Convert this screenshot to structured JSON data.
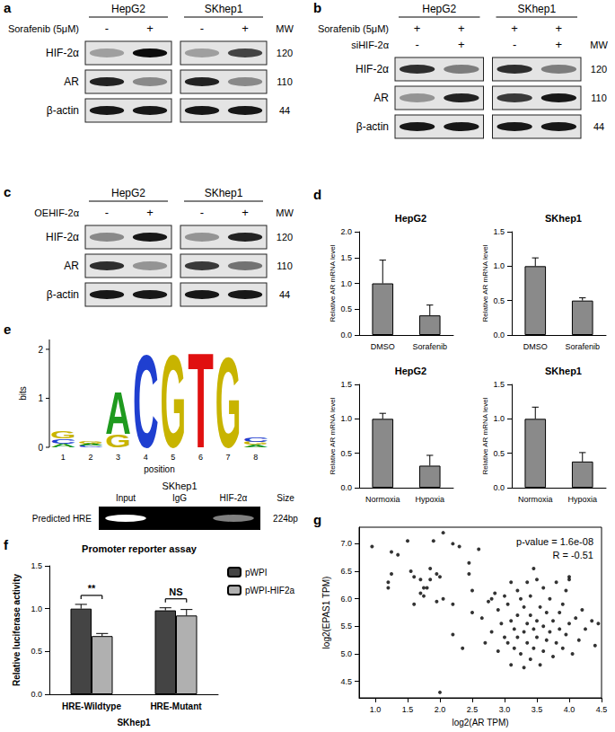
{
  "panel_labels": [
    "a",
    "b",
    "c",
    "d",
    "e",
    "f",
    "g"
  ],
  "panels": {
    "a": {
      "columns": [
        {
          "header": "HepG2"
        },
        {
          "header": "SKhep1"
        }
      ],
      "mw_header": "MW",
      "treatments": [
        {
          "label": "Sorafenib (5μM)",
          "signs": [
            [
              "-",
              "+"
            ],
            [
              "-",
              "+"
            ]
          ]
        }
      ],
      "rows": [
        {
          "label": "HIF-2α",
          "mw": 120,
          "intensity": [
            [
              0.3,
              0.95
            ],
            [
              0.3,
              0.7
            ]
          ]
        },
        {
          "label": "AR",
          "mw": 110,
          "intensity": [
            [
              0.85,
              0.4
            ],
            [
              0.85,
              0.4
            ]
          ]
        },
        {
          "label": "β-actin",
          "mw": 44,
          "intensity": [
            [
              0.9,
              0.9
            ],
            [
              0.9,
              0.9
            ]
          ]
        }
      ]
    },
    "b": {
      "columns": [
        {
          "header": "HepG2"
        },
        {
          "header": "SKhep1"
        }
      ],
      "mw_header": "MW",
      "treatments": [
        {
          "label": "Sorafenib (5μM)",
          "signs": [
            [
              "+",
              "+"
            ],
            [
              "+",
              "+"
            ]
          ]
        },
        {
          "label": "siHIF-2α",
          "signs": [
            [
              "-",
              "+"
            ],
            [
              "-",
              "+"
            ]
          ]
        }
      ],
      "rows": [
        {
          "label": "HIF-2α",
          "mw": 120,
          "intensity": [
            [
              0.8,
              0.45
            ],
            [
              0.8,
              0.45
            ]
          ]
        },
        {
          "label": "AR",
          "mw": 110,
          "intensity": [
            [
              0.35,
              0.85
            ],
            [
              0.75,
              0.9
            ]
          ]
        },
        {
          "label": "β-actin",
          "mw": 44,
          "intensity": [
            [
              0.9,
              0.9
            ],
            [
              0.9,
              0.9
            ]
          ]
        }
      ]
    },
    "c": {
      "columns": [
        {
          "header": "HepG2"
        },
        {
          "header": "SKhep1"
        }
      ],
      "mw_header": "MW",
      "treatments": [
        {
          "label": "OEHIF-2α",
          "signs": [
            [
              "-",
              "+"
            ],
            [
              "-",
              "+"
            ]
          ]
        }
      ],
      "rows": [
        {
          "label": "HIF-2α",
          "mw": 120,
          "intensity": [
            [
              0.4,
              0.9
            ],
            [
              0.35,
              0.85
            ]
          ]
        },
        {
          "label": "AR",
          "mw": 110,
          "intensity": [
            [
              0.8,
              0.35
            ],
            [
              0.75,
              0.5
            ]
          ]
        },
        {
          "label": "β-actin",
          "mw": 44,
          "intensity": [
            [
              0.9,
              0.9
            ],
            [
              0.9,
              0.9
            ]
          ]
        }
      ]
    },
    "e": {
      "logo": {
        "y_label": "bits",
        "x_label": "position",
        "ylim": [
          0,
          2.2
        ],
        "yticks": [
          0,
          1,
          2
        ],
        "positions": [
          1,
          2,
          3,
          4,
          5,
          6,
          7,
          8
        ],
        "stacks": [
          [
            {
              "letter": "A",
              "bits": 0.08,
              "color": "#1f9a1f"
            },
            {
              "letter": "C",
              "bits": 0.1,
              "color": "#1f3fd0"
            },
            {
              "letter": "G",
              "bits": 0.15,
              "color": "#c8b400"
            }
          ],
          [
            {
              "letter": "C",
              "bits": 0.04,
              "color": "#1f3fd0"
            },
            {
              "letter": "A",
              "bits": 0.04,
              "color": "#1f9a1f"
            },
            {
              "letter": "G",
              "bits": 0.04,
              "color": "#c8b400"
            }
          ],
          [
            {
              "letter": "G",
              "bits": 0.28,
              "color": "#c8b400"
            },
            {
              "letter": "A",
              "bits": 0.9,
              "color": "#1f9a1f"
            }
          ],
          [
            {
              "letter": "C",
              "bits": 1.95,
              "color": "#1f3fd0"
            }
          ],
          [
            {
              "letter": "G",
              "bits": 1.95,
              "color": "#c8b400"
            }
          ],
          [
            {
              "letter": "T",
              "bits": 2.0,
              "color": "#e01010"
            }
          ],
          [
            {
              "letter": "G",
              "bits": 1.9,
              "color": "#c8b400"
            }
          ],
          [
            {
              "letter": "A",
              "bits": 0.05,
              "color": "#1f9a1f"
            },
            {
              "letter": "G",
              "bits": 0.06,
              "color": "#c8b400"
            },
            {
              "letter": "C",
              "bits": 0.1,
              "color": "#1f3fd0"
            }
          ]
        ]
      },
      "chip": {
        "header": "SKhep1",
        "lanes": [
          "Input",
          "IgG",
          "HIF-2α"
        ],
        "size_header": "Size",
        "row_label": "Predicted HRE",
        "size": "224bp",
        "intensity": [
          1.0,
          0.0,
          0.5
        ]
      }
    }
  },
  "chart_data": [
    {
      "type": "bar",
      "title": "HepG2",
      "y_label": "Relative AR mRNA level",
      "categories": [
        "DMSO",
        "Sorafenib"
      ],
      "values": [
        1.0,
        0.38
      ],
      "errors": [
        0.45,
        0.2
      ],
      "color": "#8a8a8a",
      "ylim": [
        0,
        2
      ],
      "yticks": [
        {
          "value": 0,
          "label": "0.0"
        },
        0.5,
        {
          "value": 1,
          "label": "1.0"
        },
        1.5,
        {
          "value": 2,
          "label": "2.0"
        }
      ],
      "grid": false
    },
    {
      "type": "bar",
      "title": "SKhep1",
      "y_label": "Relative AR mRNA level",
      "categories": [
        "DMSO",
        "Sorafenib"
      ],
      "values": [
        1.0,
        0.5
      ],
      "errors": [
        0.12,
        0.04
      ],
      "color": "#8a8a8a",
      "ylim": [
        0,
        1.5
      ],
      "yticks": [
        {
          "value": 0,
          "label": "0.0"
        },
        0.5,
        {
          "value": 1,
          "label": "1.0"
        },
        1.5
      ],
      "grid": false
    },
    {
      "type": "bar",
      "title": "HepG2",
      "y_label": "Relative AR mRNA level",
      "categories": [
        "Normoxia",
        "Hypoxia"
      ],
      "values": [
        1.0,
        0.32
      ],
      "errors": [
        0.08,
        0.15
      ],
      "color": "#8a8a8a",
      "ylim": [
        0,
        1.5
      ],
      "yticks": [
        {
          "value": 0,
          "label": "0.0"
        },
        0.5,
        {
          "value": 1,
          "label": "1.0"
        },
        1.5
      ],
      "grid": false
    },
    {
      "type": "bar",
      "title": "SKhep1",
      "y_label": "Relative AR mRNA level",
      "categories": [
        "Normoxia",
        "Hypoxia"
      ],
      "values": [
        1.0,
        0.38
      ],
      "errors": [
        0.17,
        0.13
      ],
      "color": "#8a8a8a",
      "ylim": [
        0,
        1.5
      ],
      "yticks": [
        {
          "value": 0,
          "label": "0.0"
        },
        0.5,
        {
          "value": 1,
          "label": "1.0"
        },
        1.5
      ],
      "grid": false
    },
    {
      "type": "bar",
      "title": "Promoter reporter assay",
      "y_label": "Relative luciferase activity",
      "x_label": "SKhep1",
      "categories": [
        "HRE-Wildtype",
        "HRE-Mutant"
      ],
      "series": [
        {
          "name": "pWPI",
          "color": "#444444",
          "values": [
            1.0,
            0.98
          ],
          "errors": [
            0.05,
            0.03
          ]
        },
        {
          "name": "pWPI-HIF2a",
          "color": "#b0b0b0",
          "values": [
            0.68,
            0.92
          ],
          "errors": [
            0.03,
            0.07
          ]
        }
      ],
      "significance": [
        {
          "category": "HRE-Wildtype",
          "label": "**"
        },
        {
          "category": "HRE-Mutant",
          "label": "NS"
        }
      ],
      "ylim": [
        0,
        1.5
      ],
      "yticks": [
        {
          "value": 0,
          "label": "0.0"
        },
        0.5,
        {
          "value": 1,
          "label": "1.0"
        },
        1.5
      ],
      "legend": "top-right",
      "grid": false
    },
    {
      "type": "scatter",
      "x_label": "log2(AR TPM)",
      "y_label": "log2(EPAS1 TPM)",
      "annotations": [
        "p-value = 1.6e-08",
        "R = -0.51"
      ],
      "color": "#000000",
      "marker": "circle",
      "grid": false,
      "xlim": [
        0.75,
        4.5
      ],
      "xticks": [
        {
          "value": 1,
          "label": "1.0"
        },
        1.5,
        {
          "value": 2,
          "label": "2.0"
        },
        2.5,
        {
          "value": 3,
          "label": "3.0"
        },
        3.5,
        {
          "value": 4,
          "label": "4.0"
        },
        4.5
      ],
      "ylim": [
        4.2,
        7.3
      ],
      "yticks": [
        4.5,
        {
          "value": 5,
          "label": "5.0"
        },
        5.5,
        {
          "value": 6,
          "label": "6.0"
        },
        6.5,
        {
          "value": 7,
          "label": "7.0"
        }
      ],
      "x": [
        0.95,
        1.2,
        1.2,
        1.25,
        1.25,
        1.35,
        1.5,
        1.55,
        1.6,
        1.7,
        1.7,
        1.75,
        1.75,
        1.8,
        1.85,
        1.85,
        1.9,
        1.95,
        2.0,
        2.05,
        2.05,
        1.95,
        2.2,
        2.3,
        2.45,
        2.5,
        2.6,
        1.6,
        2.0,
        2.2,
        2.2,
        2.35,
        2.45,
        2.5,
        2.65,
        2.7,
        2.75,
        2.8,
        2.8,
        2.85,
        2.9,
        2.9,
        2.95,
        3.0,
        3.0,
        3.05,
        3.05,
        3.1,
        3.1,
        3.1,
        3.15,
        3.15,
        3.2,
        3.2,
        3.2,
        3.25,
        3.25,
        3.3,
        3.3,
        3.3,
        3.35,
        3.35,
        3.35,
        3.4,
        3.4,
        3.4,
        3.45,
        3.45,
        3.5,
        3.5,
        3.5,
        3.55,
        3.55,
        3.6,
        3.6,
        3.6,
        3.65,
        3.65,
        3.7,
        3.7,
        3.75,
        3.75,
        3.8,
        3.8,
        3.85,
        3.85,
        3.9,
        3.9,
        3.95,
        4.0,
        4.0,
        4.0,
        4.05,
        4.1,
        4.15,
        4.2,
        4.25,
        4.35,
        4.4,
        4.45,
        3.45,
        3.95
      ],
      "y": [
        6.95,
        6.3,
        6.2,
        6.45,
        6.85,
        6.8,
        7.05,
        6.5,
        6.4,
        6.35,
        6.1,
        6.05,
        6.2,
        6.2,
        6.55,
        6.35,
        7.05,
        6.45,
        6.4,
        7.2,
        6.0,
        5.95,
        7.0,
        6.95,
        6.45,
        6.15,
        6.9,
        5.9,
        4.3,
        5.9,
        5.35,
        5.1,
        6.65,
        5.75,
        5.65,
        5.2,
        5.95,
        6.0,
        5.4,
        6.1,
        5.8,
        5.05,
        5.55,
        6.05,
        5.3,
        5.9,
        5.2,
        6.3,
        5.6,
        4.8,
        5.45,
        5.1,
        6.15,
        5.7,
        5.3,
        6.0,
        5.0,
        5.85,
        5.4,
        4.75,
        6.3,
        5.55,
        5.2,
        6.05,
        5.7,
        4.9,
        5.45,
        5.1,
        6.35,
        5.6,
        5.3,
        5.85,
        4.8,
        6.2,
        5.5,
        5.05,
        5.75,
        5.25,
        6.0,
        5.4,
        5.6,
        4.95,
        6.3,
        5.2,
        5.75,
        5.45,
        5.9,
        5.1,
        5.35,
        6.4,
        6.35,
        5.55,
        5.0,
        5.65,
        5.25,
        5.8,
        5.45,
        5.6,
        5.15,
        5.55,
        6.55,
        6.15
      ]
    }
  ]
}
